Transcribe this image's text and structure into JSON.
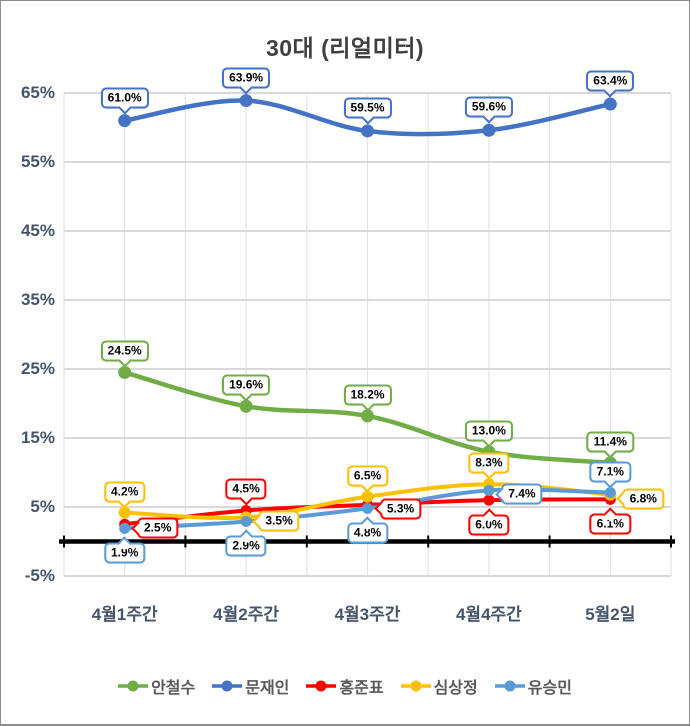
{
  "window": {
    "background": "#FFFFFF",
    "border_color": "#8C8C8C"
  },
  "chart_data": {
    "type": "line",
    "title": "30대 (리얼미터)",
    "title_color": "#404040",
    "categories": [
      "4월1주간",
      "4월2주간",
      "4월3주간",
      "4월4주간",
      "5월2일"
    ],
    "y_tick_labels": [
      "65%",
      "55%",
      "45%",
      "35%",
      "25%",
      "15%",
      "5%",
      "-5%"
    ],
    "y_tick_values": [
      65,
      55,
      45,
      35,
      25,
      15,
      5,
      -5
    ],
    "ylim": [
      -5,
      65
    ],
    "y_major_step": 10,
    "grid": "on",
    "smoothed_lines": true,
    "legend_position": "bottom",
    "axis_label_color": "#44546A",
    "gridline_color": "#D9D9D9",
    "minor_gridline_color": "#E4E4E4",
    "axis_line_color": "#000000",
    "data_label_style": "white callout box with series-colored border",
    "series": [
      {
        "name": "안철수",
        "color": "#70AD47",
        "values": [
          24.5,
          19.6,
          18.2,
          13.0,
          11.4
        ],
        "labels": [
          "24.5%",
          "19.6%",
          "18.2%",
          "13.0%",
          "11.4%"
        ],
        "label_placement": [
          "above",
          "above",
          "above",
          "above",
          "above"
        ]
      },
      {
        "name": "문재인",
        "color": "#4472C4",
        "values": [
          61.0,
          63.9,
          59.5,
          59.6,
          63.4
        ],
        "labels": [
          "61.0%",
          "63.9%",
          "59.5%",
          "59.6%",
          "63.4%"
        ],
        "label_placement": [
          "above",
          "above",
          "above",
          "above",
          "above"
        ]
      },
      {
        "name": "홍준표",
        "color": "#FF0000",
        "values": [
          2.5,
          4.5,
          5.3,
          6.0,
          6.1
        ],
        "labels": [
          "2.5%",
          "4.5%",
          "5.3%",
          "6.0%",
          "6.1%"
        ],
        "label_placement": [
          "right",
          "above",
          "right",
          "below",
          "below"
        ]
      },
      {
        "name": "심상정",
        "color": "#FFC000",
        "values": [
          4.2,
          3.5,
          6.5,
          8.3,
          6.8
        ],
        "labels": [
          "4.2%",
          "3.5%",
          "6.5%",
          "8.3%",
          "6.8%"
        ],
        "label_placement": [
          "above",
          "right",
          "above",
          "above",
          "right"
        ]
      },
      {
        "name": "유승민",
        "color": "#5B9BD5",
        "values": [
          1.9,
          2.9,
          4.8,
          7.4,
          7.1
        ],
        "labels": [
          "1.9%",
          "2.9%",
          "4.8%",
          "7.4%",
          "7.1%"
        ],
        "label_placement": [
          "below",
          "below",
          "below",
          "right",
          "above"
        ]
      }
    ]
  }
}
